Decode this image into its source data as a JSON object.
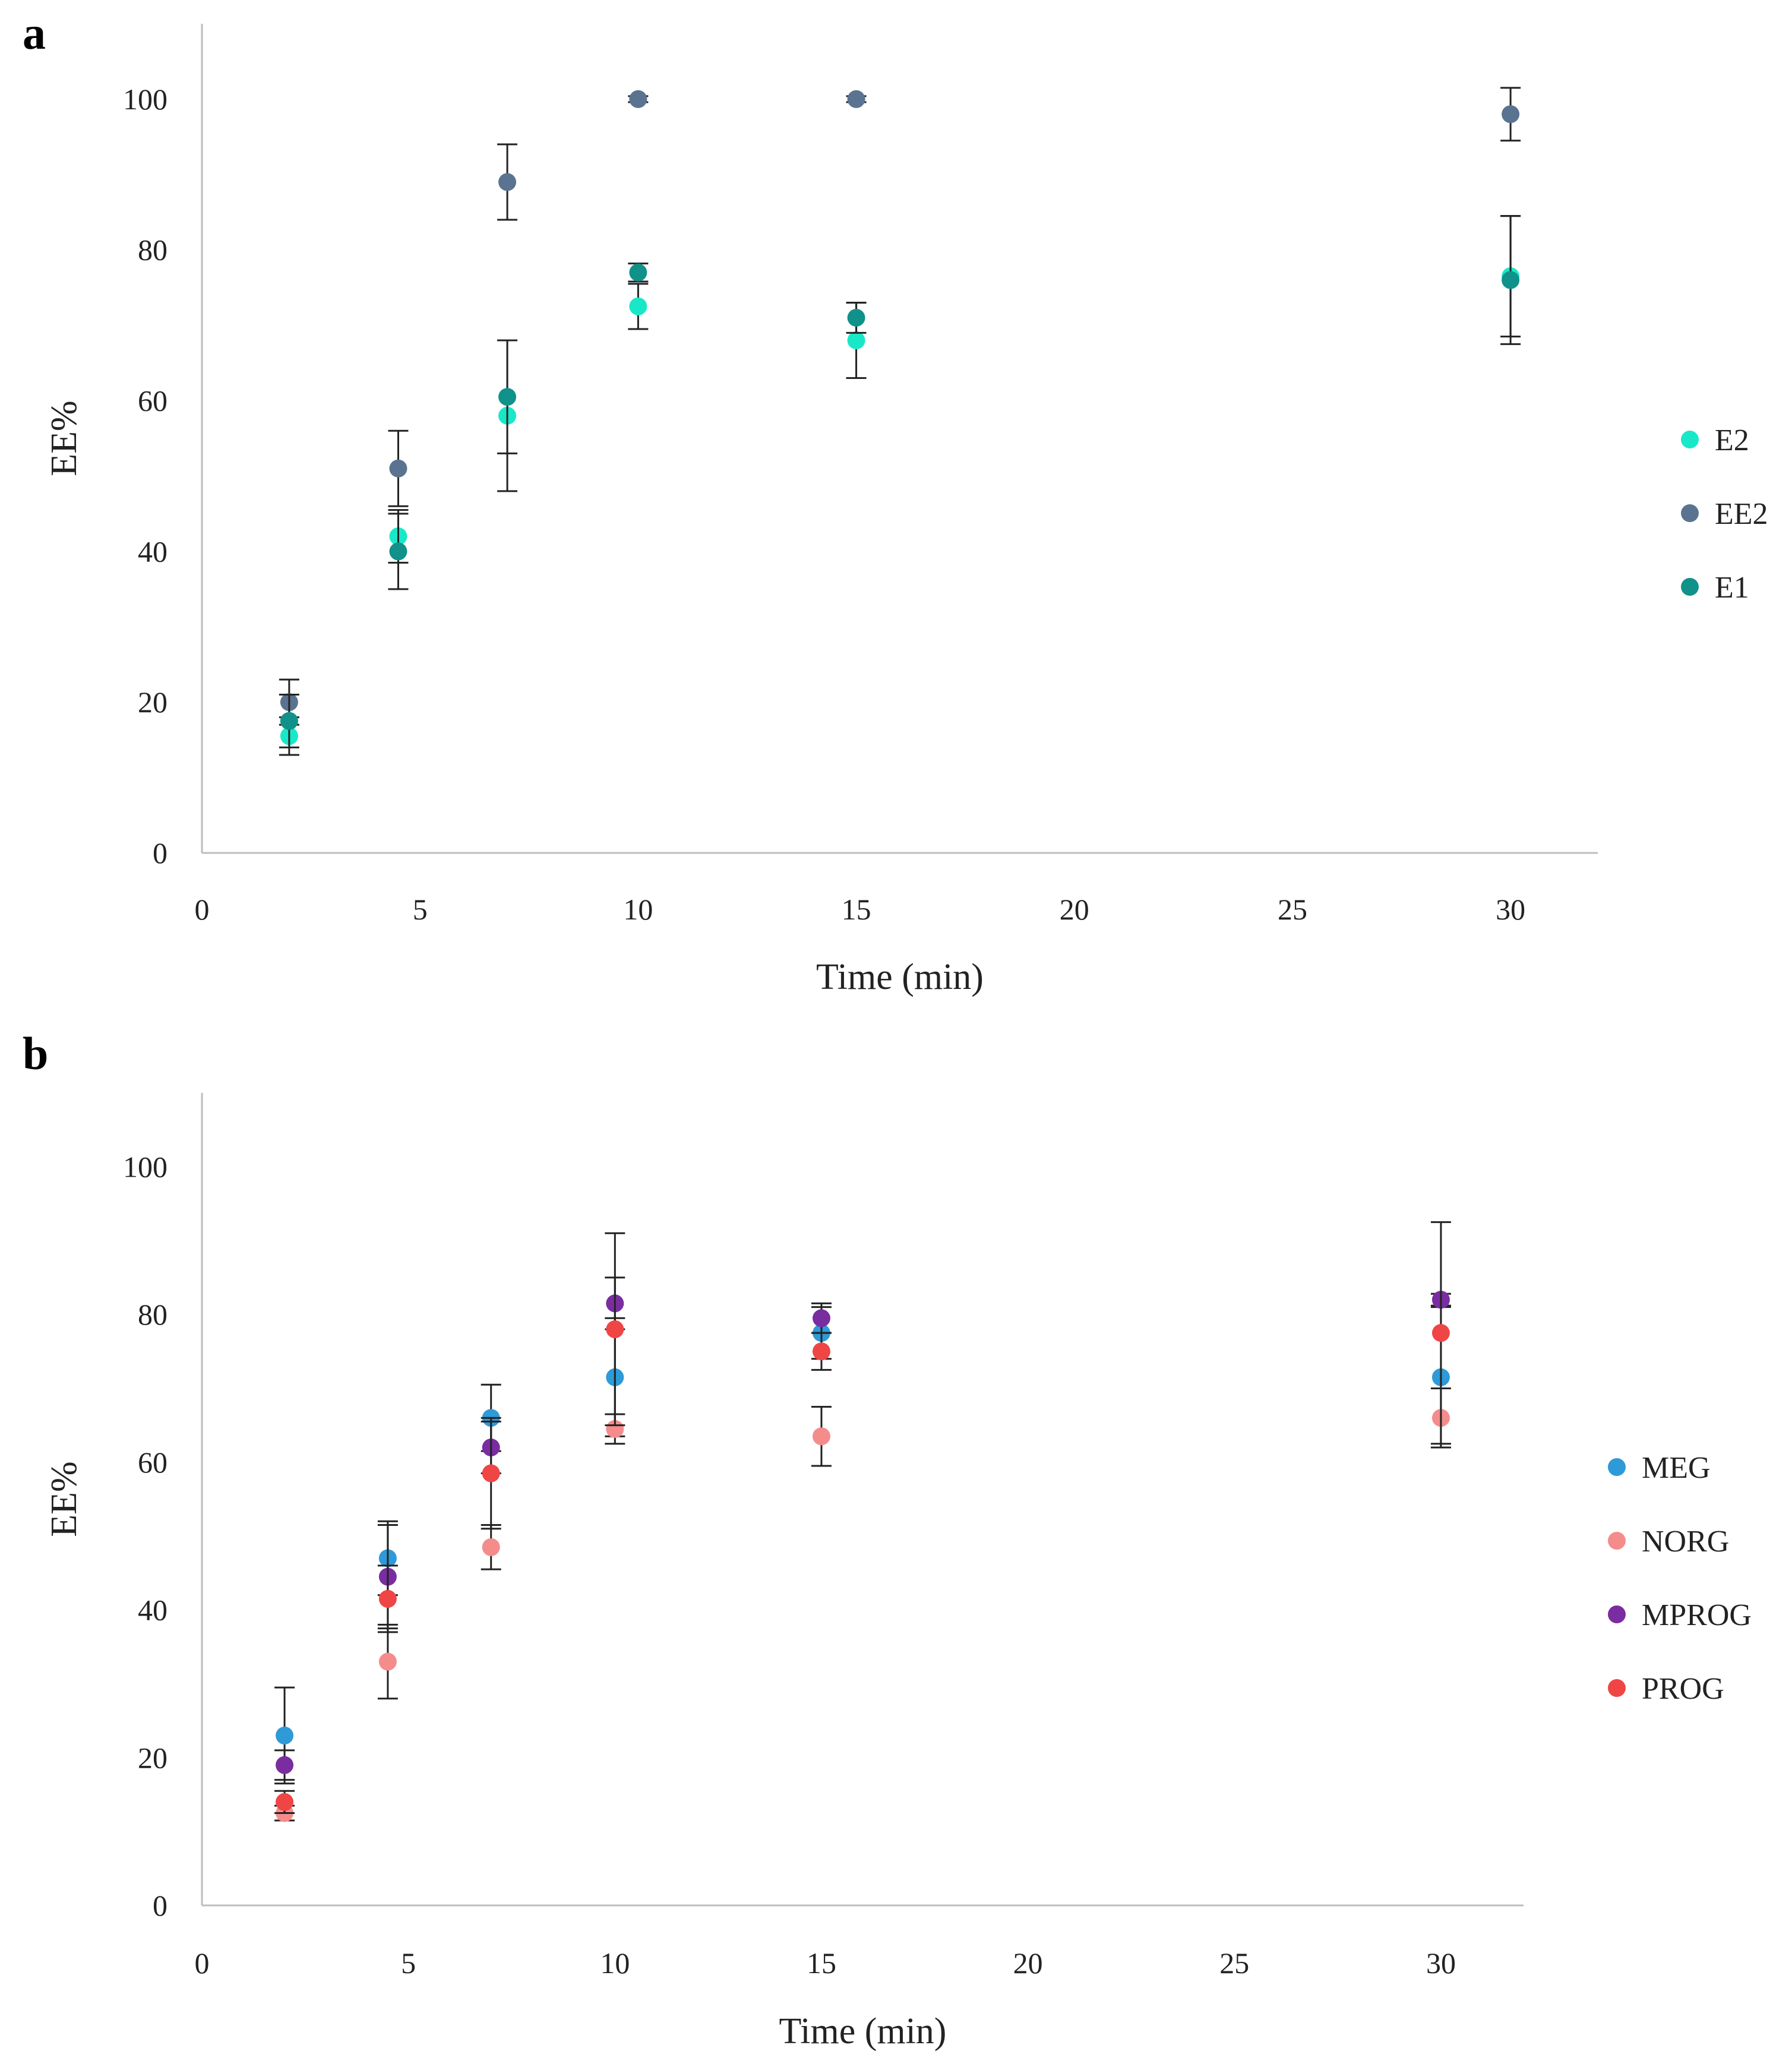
{
  "chart_data": [
    {
      "panel": "a",
      "type": "scatter",
      "title": "",
      "xlabel": "Time (min)",
      "ylabel": "EE%",
      "xlim": [
        0,
        32
      ],
      "ylim": [
        0,
        110
      ],
      "xticks": [
        0,
        5,
        10,
        15,
        20,
        25,
        30
      ],
      "yticks": [
        0,
        20,
        40,
        60,
        80,
        100
      ],
      "grid": false,
      "legend_position": "right",
      "x": [
        2,
        4.5,
        7,
        10,
        15,
        30
      ],
      "series": [
        {
          "name": "E2",
          "color": "#19e8c8",
          "values": [
            15.5,
            42,
            58,
            72.5,
            68,
            76.5
          ],
          "errors": [
            2.5,
            3.5,
            10,
            3,
            5,
            8
          ]
        },
        {
          "name": "EE2",
          "color": "#5a7390",
          "values": [
            20,
            51,
            89,
            100,
            100,
            98
          ],
          "errors": [
            3,
            5,
            5,
            0.4,
            0.4,
            3.5
          ]
        },
        {
          "name": "E1",
          "color": "#10928a",
          "values": [
            17.5,
            40,
            60.5,
            77,
            71,
            76
          ],
          "errors": [
            3.5,
            5,
            7.5,
            1.2,
            2,
            8.5
          ]
        }
      ]
    },
    {
      "panel": "b",
      "type": "scatter",
      "title": "",
      "xlabel": "Time (min)",
      "ylabel": "EE%",
      "xlim": [
        0,
        32
      ],
      "ylim": [
        0,
        110
      ],
      "xticks": [
        0,
        5,
        10,
        15,
        20,
        25,
        30
      ],
      "yticks": [
        0,
        20,
        40,
        60,
        80,
        100
      ],
      "grid": false,
      "legend_position": "right",
      "x": [
        2,
        4.5,
        7,
        10,
        15,
        30
      ],
      "series": [
        {
          "name": "MEG",
          "color": "#2e9ad8",
          "values": [
            23,
            47,
            66,
            71.5,
            77.5,
            71.5
          ],
          "errors": [
            6.5,
            5,
            4.5,
            8,
            3.5,
            9.5
          ]
        },
        {
          "name": "NORG",
          "color": "#f58c8c",
          "values": [
            12.5,
            33,
            48.5,
            64.5,
            63.5,
            66
          ],
          "errors": [
            1,
            5,
            3,
            2,
            4,
            4
          ]
        },
        {
          "name": "MPROG",
          "color": "#7a2da0",
          "values": [
            19,
            44.5,
            62,
            81.5,
            79.5,
            82
          ],
          "errors": [
            2,
            7,
            3.5,
            3.5,
            2,
            0.8
          ]
        },
        {
          "name": "PROG",
          "color": "#f04545",
          "values": [
            14,
            41.5,
            58.5,
            78,
            75,
            77.5
          ],
          "errors": [
            1.5,
            4.5,
            7.5,
            13,
            2.5,
            15
          ]
        }
      ]
    }
  ]
}
